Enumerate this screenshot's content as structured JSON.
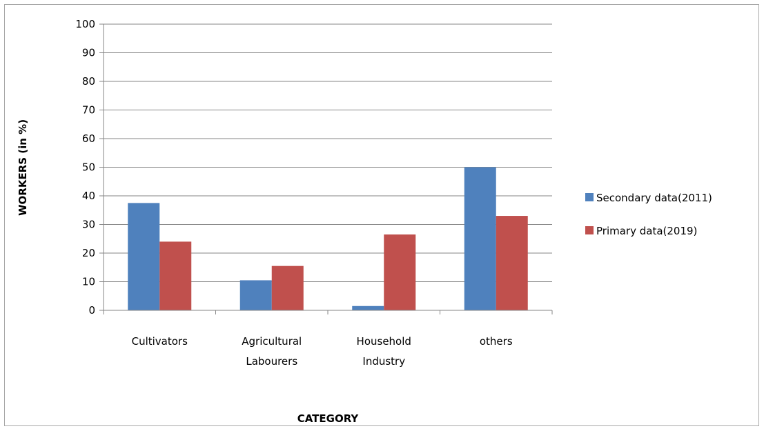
{
  "chart_data": {
    "type": "bar",
    "title": "",
    "xlabel": "CATEGORY",
    "ylabel": "WORKERS  (in %)",
    "ylim": [
      0,
      100
    ],
    "yticks": [
      0,
      10,
      20,
      30,
      40,
      50,
      60,
      70,
      80,
      90,
      100
    ],
    "grid": true,
    "legend_position": "right",
    "categories": [
      [
        "Cultivators"
      ],
      [
        "Agricultural",
        "Labourers"
      ],
      [
        "Household",
        "Industry"
      ],
      [
        "others"
      ]
    ],
    "series": [
      {
        "name": "Secondary data(2011)",
        "color": "#4f81bd",
        "values": [
          37.5,
          10.5,
          1.5,
          50
        ]
      },
      {
        "name": "Primary data(2019)",
        "color": "#c0504d",
        "values": [
          24,
          15.5,
          26.5,
          33
        ]
      }
    ]
  }
}
